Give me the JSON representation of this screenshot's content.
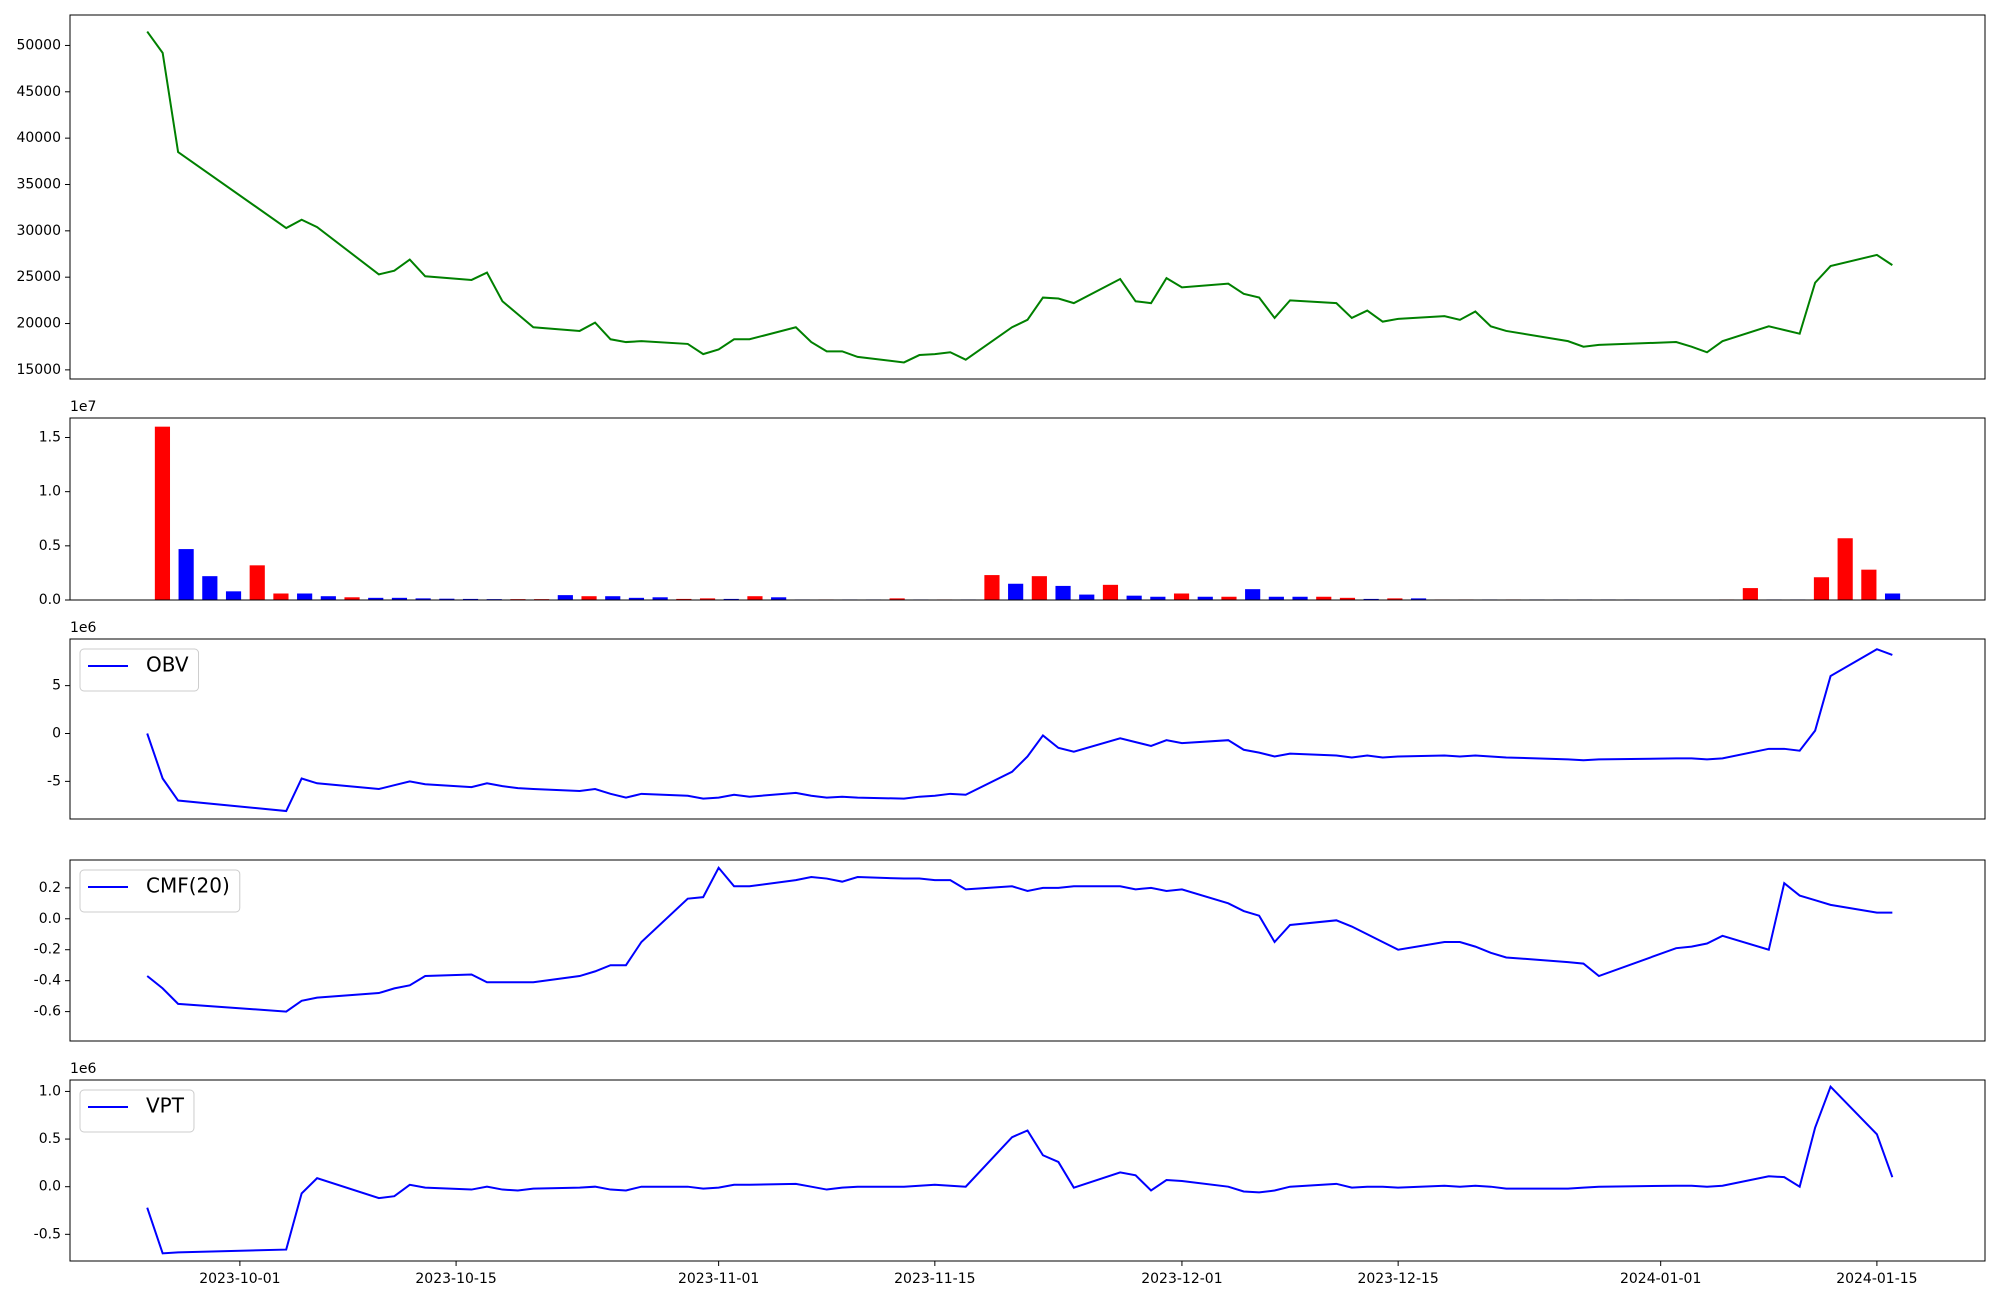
{
  "chart_data": [
    {
      "type": "line",
      "x": [
        "2023-09-25",
        "2023-09-26",
        "2023-09-27",
        "2023-10-04",
        "2023-10-05",
        "2023-10-06",
        "2023-10-10",
        "2023-10-11",
        "2023-10-12",
        "2023-10-13",
        "2023-10-16",
        "2023-10-17",
        "2023-10-18",
        "2023-10-19",
        "2023-10-20",
        "2023-10-23",
        "2023-10-24",
        "2023-10-25",
        "2023-10-26",
        "2023-10-27",
        "2023-10-30",
        "2023-10-31",
        "2023-11-01",
        "2023-11-02",
        "2023-11-03",
        "2023-11-06",
        "2023-11-07",
        "2023-11-08",
        "2023-11-09",
        "2023-11-10",
        "2023-11-13",
        "2023-11-14",
        "2023-11-15",
        "2023-11-16",
        "2023-11-17",
        "2023-11-20",
        "2023-11-21",
        "2023-11-22",
        "2023-11-23",
        "2023-11-24",
        "2023-11-27",
        "2023-11-28",
        "2023-11-29",
        "2023-11-30",
        "2023-12-01",
        "2023-12-04",
        "2023-12-05",
        "2023-12-06",
        "2023-12-07",
        "2023-12-08",
        "2023-12-11",
        "2023-12-12",
        "2023-12-13",
        "2023-12-14",
        "2023-12-15",
        "2023-12-18",
        "2023-12-19",
        "2023-12-20",
        "2023-12-21",
        "2023-12-22",
        "2023-12-26",
        "2023-12-27",
        "2023-12-28",
        "2024-01-02",
        "2024-01-03",
        "2024-01-04",
        "2024-01-05",
        "2024-01-08",
        "2024-01-09",
        "2024-01-10",
        "2024-01-11",
        "2024-01-12",
        "2024-01-15",
        "2024-01-16"
      ],
      "values": [
        51500,
        49200,
        38500,
        30300,
        31200,
        30400,
        25300,
        25700,
        26900,
        25100,
        24700,
        25500,
        22400,
        21000,
        19600,
        19200,
        20100,
        18300,
        18000,
        18100,
        17800,
        16700,
        17200,
        18300,
        18300,
        19600,
        18000,
        17000,
        17000,
        16400,
        15800,
        16600,
        16700,
        16900,
        16100,
        19600,
        20400,
        22800,
        22700,
        22200,
        24800,
        22400,
        22200,
        24900,
        23900,
        24300,
        23200,
        22800,
        20600,
        22500,
        22200,
        20600,
        21400,
        20200,
        20500,
        20800,
        20400,
        21300,
        19700,
        19200,
        18100,
        17500,
        17700,
        18000,
        17500,
        16900,
        18100,
        19700,
        19300,
        18900,
        24400,
        26200,
        27400,
        26300
      ],
      "color": "green",
      "xlim": [
        "2023-09-20",
        "2024-01-22"
      ],
      "ylim": [
        14015,
        53285
      ],
      "yticks": [
        15000,
        20000,
        25000,
        30000,
        35000,
        40000,
        45000,
        50000
      ]
    },
    {
      "type": "bar",
      "values": [
        1.6,
        0.47,
        0.22,
        0.08,
        0.32,
        0.06,
        0.06,
        0.035,
        0.025,
        0.02,
        0.02,
        0.015,
        0.012,
        0.01,
        0.008,
        0.008,
        0.008,
        0.045,
        0.035,
        0.035,
        0.02,
        0.025,
        0.01,
        0.015,
        0.01,
        0.035,
        0.025,
        0.005,
        0.005,
        0.005,
        0.005,
        0.015,
        0.005,
        0.005,
        0.005,
        0.23,
        0.15,
        0.22,
        0.13,
        0.05,
        0.14,
        0.04,
        0.03,
        0.06,
        0.03,
        0.03,
        0.1,
        0.03,
        0.03,
        0.03,
        0.02,
        0.01,
        0.015,
        0.015,
        0.005,
        0.005,
        0.005,
        0.005,
        0.005,
        0.005,
        0.005,
        0.005,
        0.005,
        0.002,
        0.002,
        0.003,
        0.005,
        0.11,
        0.005,
        0.005,
        0.21,
        0.57,
        0.28,
        0.06
      ],
      "colors": [
        "red",
        "blue",
        "blue",
        "blue",
        "red",
        "red",
        "blue",
        "blue",
        "red",
        "blue",
        "blue",
        "blue",
        "blue",
        "blue",
        "blue",
        "red",
        "red",
        "blue",
        "red",
        "blue",
        "blue",
        "blue",
        "red",
        "red",
        "blue",
        "red",
        "blue",
        "blue",
        "red",
        "blue",
        "blue",
        "red",
        "blue",
        "red",
        "blue",
        "red",
        "blue",
        "red",
        "blue",
        "blue",
        "red",
        "blue",
        "blue",
        "red",
        "blue",
        "red",
        "blue",
        "blue",
        "blue",
        "red",
        "red",
        "blue",
        "red",
        "blue",
        "red",
        "red",
        "blue",
        "red",
        "blue",
        "blue",
        "blue",
        "blue",
        "blue",
        "blue",
        "blue",
        "blue",
        "red",
        "red",
        "blue",
        "blue",
        "red",
        "red",
        "red",
        "blue"
      ],
      "ylim": [
        0,
        1.68
      ],
      "yticks": [
        {
          "value": 0,
          "label": "0.0"
        },
        0.5,
        {
          "value": 1,
          "label": "1.0"
        },
        1.5
      ],
      "y_offset_label": "1e7"
    },
    {
      "type": "line",
      "x": [
        "2023-09-25",
        "2023-09-26",
        "2023-09-27",
        "2023-10-04",
        "2023-10-05",
        "2023-10-06",
        "2023-10-10",
        "2023-10-11",
        "2023-10-12",
        "2023-10-13",
        "2023-10-16",
        "2023-10-17",
        "2023-10-18",
        "2023-10-19",
        "2023-10-20",
        "2023-10-23",
        "2023-10-24",
        "2023-10-25",
        "2023-10-26",
        "2023-10-27",
        "2023-10-30",
        "2023-10-31",
        "2023-11-01",
        "2023-11-02",
        "2023-11-03",
        "2023-11-06",
        "2023-11-07",
        "2023-11-08",
        "2023-11-09",
        "2023-11-10",
        "2023-11-13",
        "2023-11-14",
        "2023-11-15",
        "2023-11-16",
        "2023-11-17",
        "2023-11-20",
        "2023-11-21",
        "2023-11-22",
        "2023-11-23",
        "2023-11-24",
        "2023-11-27",
        "2023-11-28",
        "2023-11-29",
        "2023-11-30",
        "2023-12-01",
        "2023-12-04",
        "2023-12-05",
        "2023-12-06",
        "2023-12-07",
        "2023-12-08",
        "2023-12-11",
        "2023-12-12",
        "2023-12-13",
        "2023-12-14",
        "2023-12-15",
        "2023-12-18",
        "2023-12-19",
        "2023-12-20",
        "2023-12-21",
        "2023-12-22",
        "2023-12-26",
        "2023-12-27",
        "2023-12-28",
        "2024-01-02",
        "2024-01-03",
        "2024-01-04",
        "2024-01-05",
        "2024-01-08",
        "2024-01-09",
        "2024-01-10",
        "2024-01-11",
        "2024-01-12",
        "2024-01-15",
        "2024-01-16"
      ],
      "series": [
        {
          "name": "OBV",
          "color": "blue",
          "values": [
            0,
            -4.7,
            -7.0,
            -8.1,
            -4.7,
            -5.2,
            -5.8,
            -5.4,
            -5.0,
            -5.3,
            -5.6,
            -5.2,
            -5.5,
            -5.7,
            -5.8,
            -6.0,
            -5.8,
            -6.3,
            -6.7,
            -6.3,
            -6.5,
            -6.8,
            -6.7,
            -6.4,
            -6.6,
            -6.2,
            -6.5,
            -6.7,
            -6.6,
            -6.7,
            -6.8,
            -6.6,
            -6.5,
            -6.3,
            -6.4,
            -4.0,
            -2.4,
            -0.2,
            -1.5,
            -1.9,
            -0.5,
            -0.9,
            -1.3,
            -0.7,
            -1.0,
            -0.7,
            -1.7,
            -2.0,
            -2.4,
            -2.1,
            -2.3,
            -2.5,
            -2.3,
            -2.5,
            -2.4,
            -2.3,
            -2.4,
            -2.3,
            -2.4,
            -2.5,
            -2.7,
            -2.8,
            -2.7,
            -2.6,
            -2.6,
            -2.7,
            -2.6,
            -1.6,
            -1.6,
            -1.8,
            0.3,
            6.0,
            8.8,
            8.2
          ]
        }
      ],
      "xlim": [
        "2023-09-20",
        "2024-01-22"
      ],
      "ylim": [
        -8.93,
        9.87
      ],
      "yticks": [
        -5,
        0,
        5
      ],
      "y_offset_label": "1e6",
      "legend": "upper left"
    },
    {
      "type": "line",
      "x": [
        "2023-09-25",
        "2023-09-26",
        "2023-09-27",
        "2023-10-04",
        "2023-10-05",
        "2023-10-06",
        "2023-10-10",
        "2023-10-11",
        "2023-10-12",
        "2023-10-13",
        "2023-10-16",
        "2023-10-17",
        "2023-10-18",
        "2023-10-19",
        "2023-10-20",
        "2023-10-23",
        "2023-10-24",
        "2023-10-25",
        "2023-10-26",
        "2023-10-27",
        "2023-10-30",
        "2023-10-31",
        "2023-11-01",
        "2023-11-02",
        "2023-11-03",
        "2023-11-06",
        "2023-11-07",
        "2023-11-08",
        "2023-11-09",
        "2023-11-10",
        "2023-11-13",
        "2023-11-14",
        "2023-11-15",
        "2023-11-16",
        "2023-11-17",
        "2023-11-20",
        "2023-11-21",
        "2023-11-22",
        "2023-11-23",
        "2023-11-24",
        "2023-11-27",
        "2023-11-28",
        "2023-11-29",
        "2023-11-30",
        "2023-12-01",
        "2023-12-04",
        "2023-12-05",
        "2023-12-06",
        "2023-12-07",
        "2023-12-08",
        "2023-12-11",
        "2023-12-12",
        "2023-12-13",
        "2023-12-14",
        "2023-12-15",
        "2023-12-18",
        "2023-12-19",
        "2023-12-20",
        "2023-12-21",
        "2023-12-22",
        "2023-12-26",
        "2023-12-27",
        "2023-12-28",
        "2024-01-02",
        "2024-01-03",
        "2024-01-04",
        "2024-01-05",
        "2024-01-08",
        "2024-01-09",
        "2024-01-10",
        "2024-01-11",
        "2024-01-12",
        "2024-01-15",
        "2024-01-16"
      ],
      "series": [
        {
          "name": "CMF(20)",
          "color": "blue",
          "values": [
            -0.37,
            -0.45,
            -0.55,
            -0.6,
            -0.53,
            -0.51,
            -0.48,
            -0.45,
            -0.43,
            -0.37,
            -0.36,
            -0.41,
            -0.41,
            -0.41,
            -0.41,
            -0.37,
            -0.34,
            -0.3,
            -0.3,
            -0.15,
            0.13,
            0.14,
            0.33,
            0.21,
            0.21,
            0.25,
            0.27,
            0.26,
            0.24,
            0.27,
            0.26,
            0.26,
            0.25,
            0.25,
            0.19,
            0.21,
            0.18,
            0.2,
            0.2,
            0.21,
            0.21,
            0.19,
            0.2,
            0.18,
            0.19,
            0.1,
            0.05,
            0.02,
            -0.15,
            -0.04,
            -0.01,
            -0.05,
            -0.1,
            -0.15,
            -0.2,
            -0.15,
            -0.15,
            -0.18,
            -0.22,
            -0.25,
            -0.28,
            -0.29,
            -0.37,
            -0.19,
            -0.18,
            -0.16,
            -0.11,
            -0.2,
            0.23,
            0.15,
            0.12,
            0.09,
            0.04,
            0.04
          ]
        }
      ],
      "xlim": [
        "2023-09-20",
        "2024-01-22"
      ],
      "ylim": [
        -0.79,
        0.38
      ],
      "yticks": [
        -0.6,
        -0.4,
        -0.2,
        {
          "value": 0,
          "label": "0.0"
        },
        0.2
      ],
      "legend": "upper left"
    },
    {
      "type": "line",
      "x": [
        "2023-09-25",
        "2023-09-26",
        "2023-09-27",
        "2023-10-04",
        "2023-10-05",
        "2023-10-06",
        "2023-10-10",
        "2023-10-11",
        "2023-10-12",
        "2023-10-13",
        "2023-10-16",
        "2023-10-17",
        "2023-10-18",
        "2023-10-19",
        "2023-10-20",
        "2023-10-23",
        "2023-10-24",
        "2023-10-25",
        "2023-10-26",
        "2023-10-27",
        "2023-10-30",
        "2023-10-31",
        "2023-11-01",
        "2023-11-02",
        "2023-11-03",
        "2023-11-06",
        "2023-11-07",
        "2023-11-08",
        "2023-11-09",
        "2023-11-10",
        "2023-11-13",
        "2023-11-14",
        "2023-11-15",
        "2023-11-16",
        "2023-11-17",
        "2023-11-20",
        "2023-11-21",
        "2023-11-22",
        "2023-11-23",
        "2023-11-24",
        "2023-11-27",
        "2023-11-28",
        "2023-11-29",
        "2023-11-30",
        "2023-12-01",
        "2023-12-04",
        "2023-12-05",
        "2023-12-06",
        "2023-12-07",
        "2023-12-08",
        "2023-12-11",
        "2023-12-12",
        "2023-12-13",
        "2023-12-14",
        "2023-12-15",
        "2023-12-18",
        "2023-12-19",
        "2023-12-20",
        "2023-12-21",
        "2023-12-22",
        "2023-12-26",
        "2023-12-27",
        "2023-12-28",
        "2024-01-02",
        "2024-01-03",
        "2024-01-04",
        "2024-01-05",
        "2024-01-08",
        "2024-01-09",
        "2024-01-10",
        "2024-01-11",
        "2024-01-12",
        "2024-01-15",
        "2024-01-16"
      ],
      "series": [
        {
          "name": "VPT",
          "color": "blue",
          "values": [
            -0.22,
            -0.7,
            -0.69,
            -0.66,
            -0.07,
            0.09,
            -0.12,
            -0.1,
            0.02,
            -0.01,
            -0.03,
            0,
            -0.03,
            -0.04,
            -0.02,
            -0.01,
            0,
            -0.03,
            -0.04,
            0,
            0,
            -0.02,
            -0.01,
            0.02,
            0.02,
            0.03,
            0,
            -0.03,
            -0.01,
            0,
            0,
            0.01,
            0.02,
            0.01,
            0,
            0.52,
            0.59,
            0.33,
            0.26,
            -0.01,
            0.15,
            0.12,
            -0.04,
            0.07,
            0.06,
            0,
            -0.05,
            -0.06,
            -0.04,
            0,
            0.03,
            -0.01,
            0,
            0,
            -0.01,
            0.01,
            0,
            0.01,
            0,
            -0.02,
            -0.02,
            -0.01,
            0,
            0.01,
            0.01,
            0,
            0.01,
            0.11,
            0.1,
            0,
            0.62,
            1.05,
            0.55,
            0.1
          ]
        }
      ],
      "xlim": [
        "2023-09-20",
        "2024-01-22"
      ],
      "ylim": [
        -0.78,
        1.12
      ],
      "yticks": [
        -0.5,
        {
          "value": 0,
          "label": "0.0"
        },
        0.5,
        {
          "value": 1,
          "label": "1.0"
        }
      ],
      "y_offset_label": "1e6",
      "legend": "upper left",
      "xticks": [
        "2023-10-01",
        "2023-10-15",
        "2023-11-01",
        "2023-11-15",
        "2023-12-01",
        "2023-12-15",
        "2024-01-01",
        "2024-01-15"
      ]
    }
  ]
}
